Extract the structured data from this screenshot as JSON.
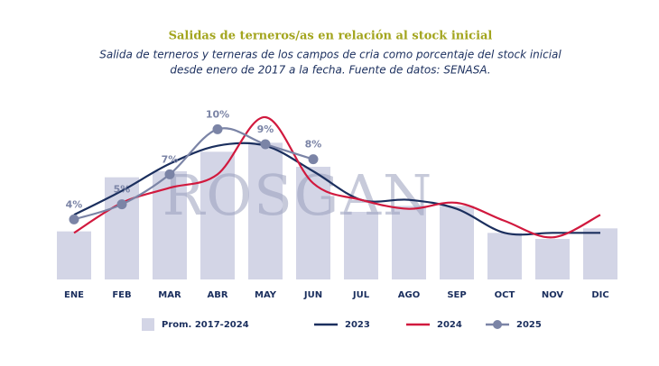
{
  "chart_data": {
    "type": "bar-line",
    "title": "Salidas de terneros/as en relación al stock inicial",
    "subtitle": [
      "Salida de terneros y terneras de los campos de cria como porcentaje del stock inicial",
      "desde enero de 2017 a la fecha. Fuente de datos: SENASA."
    ],
    "watermark": "ROSGAN",
    "categories": [
      "ENE",
      "FEB",
      "MAR",
      "ABR",
      "MAY",
      "JUN",
      "JUL",
      "AGO",
      "SEP",
      "OCT",
      "NOV",
      "DIC"
    ],
    "ylim": [
      0,
      12
    ],
    "series": [
      {
        "name": "Prom. 2017-2024",
        "kind": "bar",
        "color": "#d3d5e6",
        "values": [
          3.2,
          6.8,
          7.2,
          8.5,
          9.1,
          7.5,
          4.5,
          4.9,
          4.9,
          3.1,
          2.7,
          3.4
        ]
      },
      {
        "name": "2023",
        "kind": "line",
        "color": "#1b2f5e",
        "values": [
          4.3,
          5.9,
          7.7,
          8.9,
          8.9,
          7.2,
          5.3,
          5.3,
          4.7,
          3.1,
          3.1,
          3.1
        ]
      },
      {
        "name": "2024",
        "kind": "line",
        "color": "#d1193e",
        "values": [
          3.1,
          5.1,
          6.1,
          7.0,
          10.8,
          6.4,
          5.3,
          4.7,
          5.1,
          3.9,
          2.8,
          4.3
        ]
      },
      {
        "name": "2025",
        "kind": "line-marker",
        "color": "#7b84a6",
        "values": [
          4,
          5,
          7,
          10,
          9,
          8,
          null,
          null,
          null,
          null,
          null,
          null
        ],
        "value_labels": [
          "4%",
          "5%",
          "7%",
          "10%",
          "9%",
          "8%",
          null,
          null,
          null,
          null,
          null,
          null
        ]
      }
    ]
  }
}
